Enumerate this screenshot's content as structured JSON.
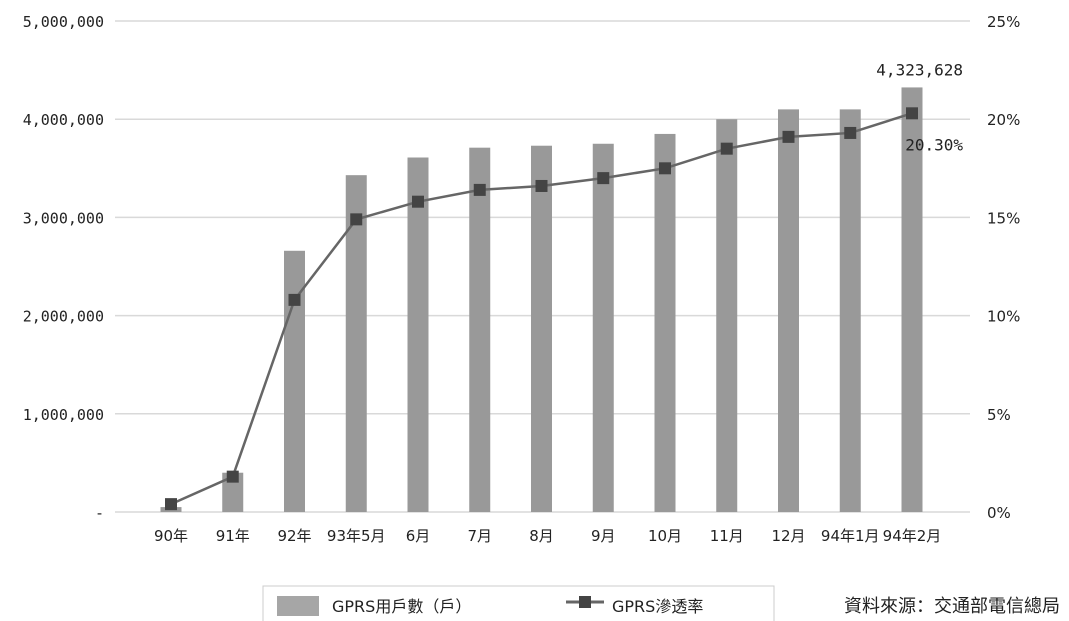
{
  "chart_data": {
    "type": "bar",
    "categories": [
      "90年",
      "91年",
      "92年",
      "93年5月",
      "6月",
      "7月",
      "8月",
      "9月",
      "10月",
      "11月",
      "12月",
      "94年1月",
      "94年2月"
    ],
    "series": [
      {
        "name": "GPRS用戶數（戶）",
        "type": "bar",
        "axis": "left",
        "color": "#999999",
        "values": [
          50000,
          400000,
          2660000,
          3430000,
          3610000,
          3710000,
          3730000,
          3750000,
          3850000,
          4000000,
          4100000,
          4100000,
          4323628
        ]
      },
      {
        "name": "GPRS滲透率",
        "type": "line",
        "axis": "right",
        "color": "#666666",
        "marker_color": "#444444",
        "values": [
          0.4,
          1.8,
          10.8,
          14.9,
          15.8,
          16.4,
          16.6,
          17.0,
          17.5,
          18.5,
          19.1,
          19.3,
          20.3
        ]
      }
    ],
    "y_left": {
      "ylim": [
        0,
        5000000
      ],
      "ticks": [
        0,
        1000000,
        2000000,
        3000000,
        4000000,
        5000000
      ],
      "tick_labels": [
        "-",
        "1,000,000",
        "2,000,000",
        "3,000,000",
        "4,000,000",
        "5,000,000"
      ]
    },
    "y_right": {
      "ylim": [
        0,
        25
      ],
      "ticks": [
        0,
        5,
        10,
        15,
        20,
        25
      ],
      "tick_labels": [
        "0%",
        "5%",
        "10%",
        "15%",
        "20%",
        "25%"
      ]
    },
    "grid": true,
    "legend_position": "bottom-center",
    "annotations": [
      {
        "text": "4,323,628",
        "series": 0,
        "index": 12
      },
      {
        "text": "20.30%",
        "series": 1,
        "index": 12
      }
    ],
    "source": "資料來源：交通部電信總局"
  },
  "colors": {
    "bar": "#999999",
    "line": "#666666",
    "marker": "#444444",
    "grid": "#d9d9d9"
  }
}
